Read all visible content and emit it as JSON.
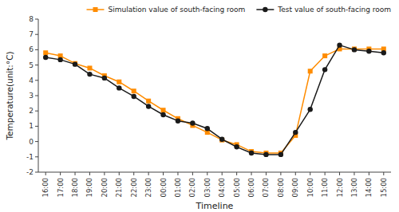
{
  "chart_data": {
    "type": "line",
    "xlabel": "Timeline",
    "ylabel": "Temperature(unit:°C)",
    "categories": [
      "16:00",
      "17:00",
      "18:00",
      "19:00",
      "20:00",
      "21:00",
      "22:00",
      "23:00",
      "00:00",
      "01:00",
      "02:00",
      "03:00",
      "04:00",
      "05:00",
      "06:00",
      "07:00",
      "08:00",
      "09:00",
      "10:00",
      "11:00",
      "12:00",
      "13:00",
      "14:00",
      "15:00"
    ],
    "series": [
      {
        "name": "Simulation value of south-facing room",
        "color": "#FF8C00",
        "marker": "square",
        "values": [
          5.8,
          5.6,
          5.1,
          4.8,
          4.3,
          3.9,
          3.3,
          2.65,
          2.05,
          1.5,
          1.05,
          0.6,
          0.1,
          -0.2,
          -0.65,
          -0.75,
          -0.75,
          0.4,
          4.6,
          5.6,
          6.05,
          6.05,
          6.05,
          6.05
        ]
      },
      {
        "name": "Test value of south-facing room",
        "color": "#1a1a1a",
        "marker": "circle",
        "values": [
          5.5,
          5.35,
          5.05,
          4.4,
          4.15,
          3.5,
          2.95,
          2.3,
          1.75,
          1.35,
          1.2,
          0.85,
          0.15,
          -0.35,
          -0.75,
          -0.85,
          -0.85,
          0.6,
          2.1,
          4.7,
          6.3,
          6.0,
          5.9,
          5.8
        ]
      }
    ],
    "ylim": [
      -2,
      8
    ],
    "yticks": [
      -2,
      -1,
      0,
      1,
      2,
      3,
      4,
      5,
      6,
      7,
      8
    ],
    "grid": false,
    "legend": "upper right"
  }
}
